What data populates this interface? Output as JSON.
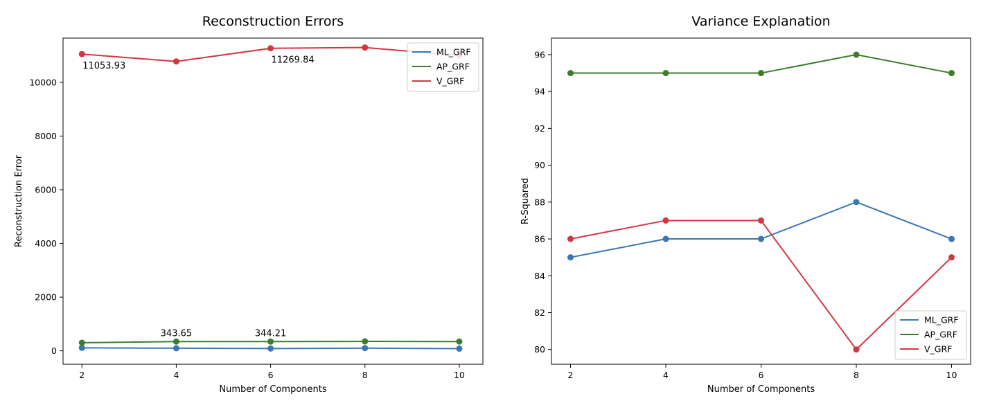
{
  "colors": {
    "ML_GRF": "#3a76b4",
    "AP_GRF": "#3a7d2b",
    "V_GRF": "#d13742"
  },
  "chart_data": [
    {
      "type": "line",
      "title": "Reconstruction Errors",
      "xlabel": "Number of Components",
      "ylabel": "Reconstruction Error",
      "x": [
        2,
        4,
        6,
        8,
        10
      ],
      "xticks": [
        2,
        4,
        6,
        8,
        10
      ],
      "yticks": [
        0,
        2000,
        4000,
        6000,
        8000,
        10000
      ],
      "xlim": [
        1.6,
        10.5
      ],
      "ylim": [
        -500,
        11650
      ],
      "grid": false,
      "legend": "top-right",
      "series": [
        {
          "name": "ML_GRF",
          "values": [
            110,
            95,
            85,
            100,
            80
          ]
        },
        {
          "name": "AP_GRF",
          "values": [
            300,
            343.65,
            344.21,
            350,
            345
          ]
        },
        {
          "name": "V_GRF",
          "values": [
            11053.93,
            10780,
            11269.84,
            11300,
            11000
          ]
        }
      ],
      "annotations": [
        {
          "text": "11053.93",
          "x": 2,
          "y": 11053.93,
          "pos": "below"
        },
        {
          "text": "11269.84",
          "x": 6,
          "y": 11269.84,
          "pos": "below"
        },
        {
          "text": "343.65",
          "x": 4,
          "y": 343.65,
          "pos": "above"
        },
        {
          "text": "344.21",
          "x": 6,
          "y": 344.21,
          "pos": "above"
        }
      ]
    },
    {
      "type": "line",
      "title": "Variance Explanation",
      "xlabel": "Number of Components",
      "ylabel": "R-Squared",
      "x": [
        2,
        4,
        6,
        8,
        10
      ],
      "xticks": [
        2,
        4,
        6,
        8,
        10
      ],
      "yticks": [
        80,
        82,
        84,
        86,
        88,
        90,
        92,
        94,
        96
      ],
      "xlim": [
        1.6,
        10.4
      ],
      "ylim": [
        79.2,
        96.9
      ],
      "grid": false,
      "legend": "bottom-right",
      "series": [
        {
          "name": "ML_GRF",
          "values": [
            85,
            86,
            86,
            88,
            86
          ]
        },
        {
          "name": "AP_GRF",
          "values": [
            95,
            95,
            95,
            96,
            95
          ]
        },
        {
          "name": "V_GRF",
          "values": [
            86,
            87,
            87,
            80,
            85
          ]
        }
      ],
      "annotations": []
    }
  ]
}
